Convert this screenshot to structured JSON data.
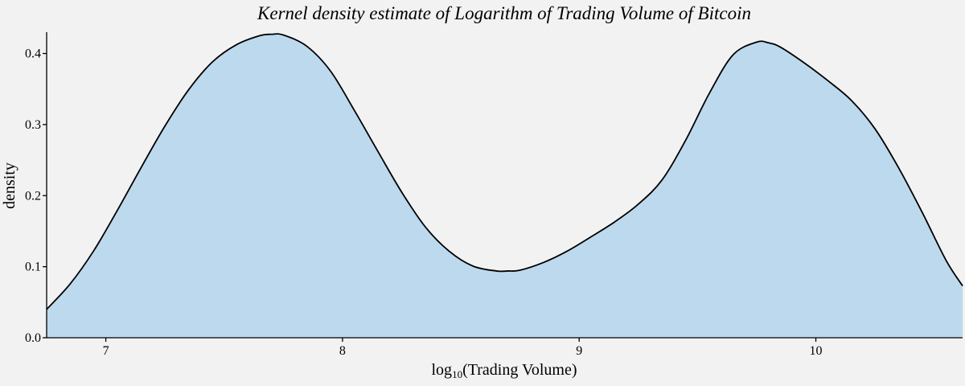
{
  "chart_data": {
    "type": "area",
    "title": "Kernel density estimate of Logarithm of Trading Volume of Bitcoin",
    "xlabel": {
      "prefix": "log",
      "subscript": "10",
      "suffix": "(Trading Volume)"
    },
    "ylabel": "density",
    "xlim": [
      6.75,
      10.62
    ],
    "ylim": [
      0,
      0.43
    ],
    "xticks": [
      7,
      8,
      9,
      10
    ],
    "yticks": [
      0.0,
      0.1,
      0.2,
      0.3,
      0.4
    ],
    "grid": false,
    "colors": {
      "fill": "#bdd9ee",
      "line": "#000000",
      "background": "#f2f2f2"
    },
    "series": [
      {
        "x": [
          6.75,
          6.85,
          6.95,
          7.05,
          7.15,
          7.25,
          7.35,
          7.45,
          7.55,
          7.65,
          7.7,
          7.75,
          7.85,
          7.95,
          8.05,
          8.15,
          8.25,
          8.35,
          8.45,
          8.55,
          8.65,
          8.7,
          8.75,
          8.85,
          8.95,
          9.05,
          9.15,
          9.25,
          9.35,
          9.45,
          9.55,
          9.65,
          9.75,
          9.8,
          9.85,
          9.95,
          10.05,
          10.15,
          10.25,
          10.35,
          10.45,
          10.55,
          10.62
        ],
        "y": [
          0.04,
          0.076,
          0.123,
          0.18,
          0.24,
          0.298,
          0.349,
          0.388,
          0.412,
          0.425,
          0.427,
          0.426,
          0.41,
          0.375,
          0.32,
          0.262,
          0.205,
          0.156,
          0.122,
          0.101,
          0.094,
          0.094,
          0.095,
          0.106,
          0.122,
          0.142,
          0.163,
          0.188,
          0.222,
          0.278,
          0.344,
          0.398,
          0.416,
          0.415,
          0.409,
          0.387,
          0.362,
          0.334,
          0.294,
          0.239,
          0.176,
          0.109,
          0.073
        ]
      }
    ]
  }
}
